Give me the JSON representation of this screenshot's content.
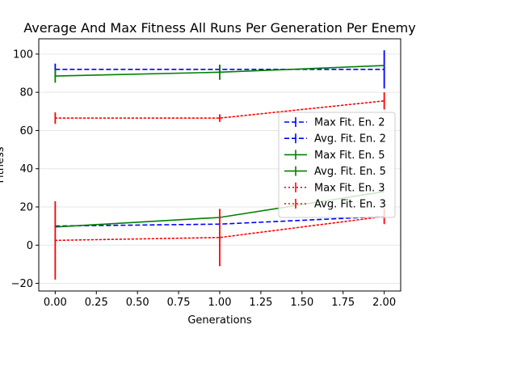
{
  "chart_data": {
    "type": "line",
    "title": "Average And Max Fitness All Runs Per Generation Per Enemy",
    "xlabel": "Generations",
    "ylabel": "Fitness",
    "xlim": [
      -0.1,
      2.1
    ],
    "ylim": [
      -24,
      108
    ],
    "xticks": [
      0.0,
      0.25,
      0.5,
      0.75,
      1.0,
      1.25,
      1.5,
      1.75,
      2.0
    ],
    "xtick_labels": [
      "0.00",
      "0.25",
      "0.50",
      "0.75",
      "1.00",
      "1.25",
      "1.50",
      "1.75",
      "2.00"
    ],
    "yticks": [
      -20,
      0,
      20,
      40,
      60,
      80,
      100
    ],
    "ytick_labels": [
      "−20",
      "0",
      "20",
      "40",
      "60",
      "80",
      "100"
    ],
    "grid": "horizontal",
    "legend_position": "right",
    "series": [
      {
        "name": "Max Fit. En. 2",
        "color": "#0000ff",
        "style": "dashed",
        "x": [
          0,
          1,
          2
        ],
        "y": [
          92,
          92,
          92
        ],
        "err": [
          3,
          2,
          10
        ]
      },
      {
        "name": "Avg. Fit. En. 2",
        "color": "#0000ff",
        "style": "dashed",
        "x": [
          0,
          1,
          2
        ],
        "y": [
          10,
          11,
          15
        ],
        "err": [
          0,
          0,
          0
        ]
      },
      {
        "name": "Max Fit. En. 5",
        "color": "#008000",
        "style": "solid",
        "x": [
          0,
          1,
          2
        ],
        "y": [
          88.5,
          90.5,
          94
        ],
        "err": [
          3.5,
          4,
          0
        ]
      },
      {
        "name": "Avg. Fit. En. 5",
        "color": "#008000",
        "style": "solid",
        "x": [
          0,
          1,
          2
        ],
        "y": [
          9.5,
          14.5,
          28
        ],
        "err": [
          0,
          0,
          0
        ]
      },
      {
        "name": "Max Fit. En. 3",
        "color": "#ff0000",
        "style": "dotted",
        "x": [
          0,
          1,
          2
        ],
        "y": [
          66.5,
          66.5,
          75.5
        ],
        "err": [
          3,
          2,
          4.5
        ]
      },
      {
        "name": "Avg. Fit. En. 3",
        "color": "#ff0000",
        "style": "dotted",
        "x": [
          0,
          1,
          2
        ],
        "y": [
          2.5,
          4,
          15
        ],
        "err": [
          20.5,
          15,
          4
        ]
      }
    ]
  }
}
